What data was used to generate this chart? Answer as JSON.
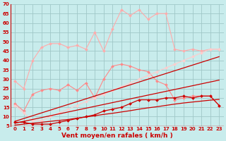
{
  "background_color": "#c8ecec",
  "grid_color": "#a0c8c8",
  "x_labels": [
    "0",
    "1",
    "2",
    "3",
    "4",
    "5",
    "6",
    "7",
    "8",
    "9",
    "10",
    "11",
    "12",
    "13",
    "14",
    "15",
    "16",
    "17",
    "18",
    "19",
    "20",
    "21",
    "22",
    "23"
  ],
  "ylim": [
    5,
    70
  ],
  "yticks": [
    5,
    10,
    15,
    20,
    25,
    30,
    35,
    40,
    45,
    50,
    55,
    60,
    65,
    70
  ],
  "xlabel": "Vent moyen/en rafales ( km/h )",
  "series": [
    {
      "color": "#ffaaaa",
      "linewidth": 0.8,
      "marker": "D",
      "markersize": 2.0,
      "y": [
        29,
        25,
        40,
        47,
        49,
        49,
        47,
        48,
        46,
        55,
        45,
        57,
        67,
        64,
        67,
        62,
        65,
        65,
        46,
        45,
        46,
        45,
        46,
        46
      ]
    },
    {
      "color": "#ff8888",
      "linewidth": 0.8,
      "marker": "D",
      "markersize": 2.0,
      "y": [
        17,
        13,
        22,
        24,
        25,
        24,
        27,
        24,
        28,
        20,
        30,
        37,
        38,
        37,
        35,
        34,
        29,
        27,
        19,
        20,
        21,
        21,
        21,
        16
      ]
    },
    {
      "color": "#ffcccc",
      "linewidth": 0.8,
      "marker": "D",
      "markersize": 2.0,
      "y": [
        16,
        12,
        8,
        8,
        10,
        12,
        14,
        16,
        18,
        20,
        22,
        24,
        26,
        28,
        30,
        32,
        34,
        36,
        38,
        40,
        42,
        44,
        46,
        46
      ]
    },
    {
      "color": "#cc0000",
      "linewidth": 0.9,
      "marker": "D",
      "markersize": 2.0,
      "y": [
        7,
        7,
        6,
        6,
        6,
        7,
        8,
        9,
        10,
        11,
        13,
        14,
        15,
        17,
        19,
        19,
        19,
        20,
        20,
        21,
        20,
        21,
        21,
        16
      ]
    },
    {
      "color": "#cc0000",
      "linewidth": 0.9,
      "marker": null,
      "markersize": 0,
      "y": [
        5.5,
        6.0,
        6.5,
        7.0,
        7.5,
        8.0,
        8.5,
        9.2,
        9.8,
        10.5,
        11.2,
        11.8,
        12.5,
        13.2,
        14.0,
        14.7,
        15.3,
        16.0,
        16.7,
        17.3,
        17.8,
        18.3,
        18.8,
        19.2
      ]
    },
    {
      "color": "#cc0000",
      "linewidth": 0.9,
      "marker": null,
      "markersize": 0,
      "y": [
        6.5,
        7.5,
        8.5,
        9.5,
        10.5,
        11.5,
        12.5,
        13.5,
        14.5,
        15.5,
        16.5,
        17.5,
        18.5,
        19.5,
        20.5,
        21.5,
        22.5,
        23.5,
        24.5,
        25.5,
        26.5,
        27.5,
        28.5,
        29.5
      ]
    },
    {
      "color": "#cc0000",
      "linewidth": 0.9,
      "marker": null,
      "markersize": 0,
      "y": [
        7.5,
        9.0,
        10.5,
        12.0,
        13.5,
        15.0,
        16.5,
        18.0,
        19.5,
        21.0,
        22.5,
        24.0,
        25.5,
        27.0,
        28.5,
        30.0,
        31.5,
        33.0,
        34.5,
        36.0,
        37.5,
        39.0,
        40.5,
        42.0
      ]
    }
  ],
  "arrow_color": "#cc0000",
  "tick_color": "#cc0000",
  "tick_fontsize": 5.0,
  "xlabel_fontsize": 6.5,
  "xlabel_color": "#cc0000"
}
